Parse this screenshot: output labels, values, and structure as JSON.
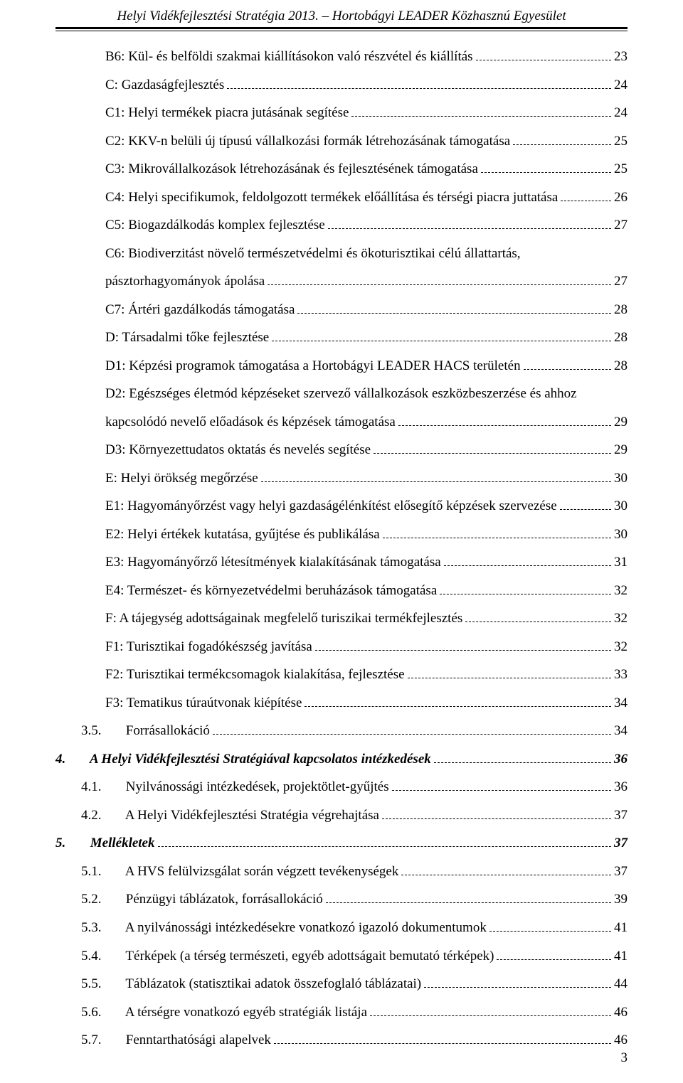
{
  "running_head": "Helyi Vidékfejlesztési Stratégia 2013. – Hortobágyi LEADER Közhasznú Egyesület",
  "page_number": "3",
  "toc": {
    "b6": {
      "text": "B6: Kül- és belföldi szakmai kiállításokon való részvétel és kiállítás",
      "page": "23"
    },
    "c": {
      "text": "C: Gazdaságfejlesztés",
      "page": "24"
    },
    "c1": {
      "text": "C1: Helyi termékek piacra jutásának segítése",
      "page": "24"
    },
    "c2": {
      "text": "C2: KKV-n belüli új típusú vállalkozási formák létrehozásának támogatása",
      "page": "25"
    },
    "c3": {
      "text": "C3: Mikrovállalkozások létrehozásának és fejlesztésének támogatása",
      "page": "25"
    },
    "c4": {
      "text": "C4: Helyi specifikumok, feldolgozott termékek előállítása és térségi piacra juttatása",
      "page": "26"
    },
    "c5": {
      "text": "C5: Biogazdálkodás komplex fejlesztése",
      "page": "27"
    },
    "c6": {
      "text_a": "C6: Biodiverzitást növelő természetvédelmi és ökoturisztikai célú állattartás,",
      "text_b": "pásztorhagyományok ápolása",
      "page": "27"
    },
    "c7": {
      "text": "C7: Ártéri gazdálkodás támogatása",
      "page": "28"
    },
    "d": {
      "text": "D: Társadalmi tőke fejlesztése",
      "page": "28"
    },
    "d1": {
      "text": "D1: Képzési programok támogatása a Hortobágyi LEADER HACS területén",
      "page": "28"
    },
    "d2": {
      "text_a": "D2: Egészséges életmód képzéseket szervező vállalkozások eszközbeszerzése és ahhoz",
      "text_b": "kapcsolódó nevelő előadások és képzések támogatása",
      "page": "29"
    },
    "d3": {
      "text": "D3: Környezettudatos oktatás és nevelés segítése",
      "page": "29"
    },
    "e": {
      "text": "E: Helyi örökség megőrzése",
      "page": "30"
    },
    "e1": {
      "text": "E1: Hagyományőrzést vagy helyi gazdaságélénkítést elősegítő képzések szervezése",
      "page": "30"
    },
    "e2": {
      "text": "E2: Helyi értékek kutatása, gyűjtése és publikálása",
      "page": "30"
    },
    "e3": {
      "text": "E3: Hagyományőrző létesítmények kialakításának támogatása",
      "page": "31"
    },
    "e4": {
      "text": "E4: Természet- és környezetvédelmi beruházások támogatása",
      "page": "32"
    },
    "f": {
      "text": "F: A tájegység adottságainak megfelelő turiszikai termékfejlesztés",
      "page": "32"
    },
    "f1": {
      "text": "F1: Turisztikai fogadókészség javítása",
      "page": "32"
    },
    "f2": {
      "text": "F2: Turisztikai termékcsomagok kialakítása, fejlesztése",
      "page": "33"
    },
    "f3": {
      "text": "F3: Tematikus túraútvonak kiépítése",
      "page": "34"
    },
    "s35": {
      "num": "3.5.",
      "text": "Forrásallokáció",
      "page": "34"
    },
    "s4": {
      "num": "4.",
      "text": "A Helyi Vidékfejlesztési Stratégiával kapcsolatos intézkedések",
      "page": "36"
    },
    "s41": {
      "num": "4.1.",
      "text": "Nyilvánossági intézkedések, projektötlet-gyűjtés",
      "page": "36"
    },
    "s42": {
      "num": "4.2.",
      "text": "A Helyi Vidékfejlesztési Stratégia végrehajtása",
      "page": "37"
    },
    "s5": {
      "num": "5.",
      "text": "Mellékletek",
      "page": "37"
    },
    "s51": {
      "num": "5.1.",
      "text": "A HVS felülvizsgálat során végzett tevékenységek",
      "page": "37"
    },
    "s52": {
      "num": "5.2.",
      "text": "Pénzügyi táblázatok, forrásallokáció",
      "page": "39"
    },
    "s53": {
      "num": "5.3.",
      "text": "A nyilvánossági intézkedésekre vonatkozó igazoló dokumentumok",
      "page": "41"
    },
    "s54": {
      "num": "5.4.",
      "text": "Térképek (a térség természeti, egyéb adottságait bemutató térképek)",
      "page": "41"
    },
    "s55": {
      "num": "5.5.",
      "text": "Táblázatok (statisztikai adatok összefoglaló táblázatai)",
      "page": "44"
    },
    "s56": {
      "num": "5.6.",
      "text": "A térségre vonatkozó egyéb stratégiák listája",
      "page": "46"
    },
    "s57": {
      "num": "5.7.",
      "text": "Fenntarthatósági alapelvek",
      "page": "46"
    }
  }
}
